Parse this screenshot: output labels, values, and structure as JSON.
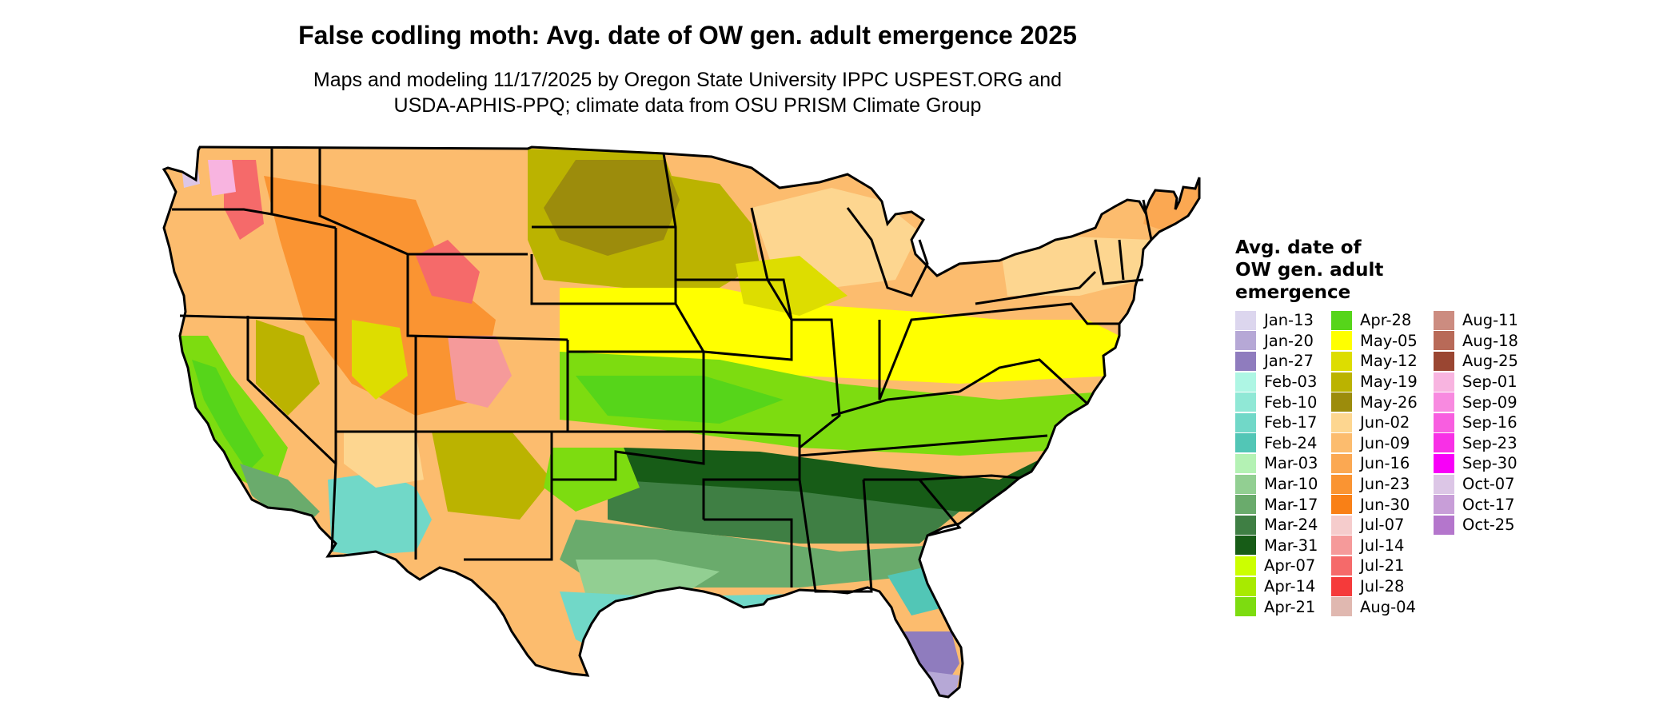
{
  "title": "False codling moth: Avg. date of OW gen. adult emergence 2025",
  "subtitle_line1": "Maps and modeling 11/17/2025 by Oregon State University IPPC USPEST.ORG and",
  "subtitle_line2": "USDA-APHIS-PPQ; climate data from OSU PRISM Climate Group",
  "legend": {
    "title_lines": [
      "Avg. date of",
      "OW gen. adult",
      "emergence"
    ],
    "columns": [
      [
        {
          "label": "Jan-13",
          "color": "#dcd6ee"
        },
        {
          "label": "Jan-20",
          "color": "#b6a8d6"
        },
        {
          "label": "Jan-27",
          "color": "#8f7cbe"
        },
        {
          "label": "Feb-03",
          "color": "#aef6e4"
        },
        {
          "label": "Feb-10",
          "color": "#90e8d6"
        },
        {
          "label": "Feb-17",
          "color": "#71d8c8"
        },
        {
          "label": "Feb-24",
          "color": "#52c6b6"
        },
        {
          "label": "Mar-03",
          "color": "#b4f2b4"
        },
        {
          "label": "Mar-10",
          "color": "#92cf92"
        },
        {
          "label": "Mar-17",
          "color": "#6aab6c"
        },
        {
          "label": "Mar-24",
          "color": "#3f7f44"
        },
        {
          "label": "Mar-31",
          "color": "#175c17"
        },
        {
          "label": "Apr-07",
          "color": "#ccff00"
        },
        {
          "label": "Apr-14",
          "color": "#a8ea00"
        },
        {
          "label": "Apr-21",
          "color": "#7ddc10"
        }
      ],
      [
        {
          "label": "Apr-28",
          "color": "#56d51a"
        },
        {
          "label": "May-05",
          "color": "#ffff00"
        },
        {
          "label": "May-12",
          "color": "#dddd00"
        },
        {
          "label": "May-19",
          "color": "#bbb300"
        },
        {
          "label": "May-26",
          "color": "#9c8c0c"
        },
        {
          "label": "Jun-02",
          "color": "#fdd690"
        },
        {
          "label": "Jun-09",
          "color": "#fcbc6e"
        },
        {
          "label": "Jun-16",
          "color": "#fba852"
        },
        {
          "label": "Jun-23",
          "color": "#fa9432"
        },
        {
          "label": "Jun-30",
          "color": "#f98016"
        },
        {
          "label": "Jul-07",
          "color": "#f5cccc"
        },
        {
          "label": "Jul-14",
          "color": "#f59a9a"
        },
        {
          "label": "Jul-21",
          "color": "#f56a6a"
        },
        {
          "label": "Jul-28",
          "color": "#f53a3a"
        },
        {
          "label": "Aug-04",
          "color": "#e0b8b0"
        }
      ],
      [
        {
          "label": "Aug-11",
          "color": "#cc8c80"
        },
        {
          "label": "Aug-18",
          "color": "#b86a58"
        },
        {
          "label": "Aug-25",
          "color": "#9a4632"
        },
        {
          "label": "Sep-01",
          "color": "#f8b4e0"
        },
        {
          "label": "Sep-09",
          "color": "#f88ae0"
        },
        {
          "label": "Sep-16",
          "color": "#f85ee0"
        },
        {
          "label": "Sep-23",
          "color": "#f830e6"
        },
        {
          "label": "Sep-30",
          "color": "#f800f8"
        },
        {
          "label": "Oct-07",
          "color": "#dcc6e6"
        },
        {
          "label": "Oct-17",
          "color": "#c89ed8"
        },
        {
          "label": "Oct-25",
          "color": "#b476cc"
        }
      ]
    ]
  }
}
